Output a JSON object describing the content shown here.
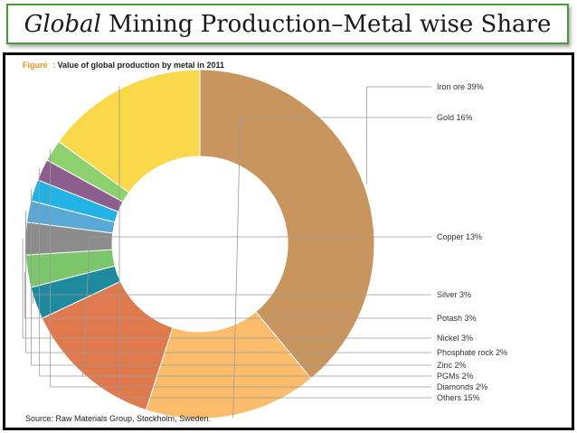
{
  "slide": {
    "title_italic": "Global",
    "title_rest": " Mining Production–Metal wise Share"
  },
  "figure": {
    "prefix": "Figure",
    "separator": ":",
    "caption": "Value of global production by metal in 2011",
    "source": "Source: Raw Materials Group, Stockholm, Sweden."
  },
  "chart_data": {
    "type": "pie",
    "donut": true,
    "title": "Value of global production by metal in 2011",
    "unit": "%",
    "categories": [
      "Iron ore",
      "Gold",
      "Copper",
      "Silver",
      "Potash",
      "Nickel",
      "Phosphate rock",
      "Zinc",
      "PGMs",
      "Diamonds",
      "Others"
    ],
    "values": [
      39,
      16,
      13,
      3,
      3,
      3,
      2,
      2,
      2,
      2,
      15
    ],
    "labels": [
      "Iron ore 39%",
      "Gold 16%",
      "Copper 13%",
      "Silver 3%",
      "Potash 3%",
      "Nickel 3%",
      "Phosphate rock 2%",
      "Zinc 2%",
      "PGMs 2%",
      "Diamonds 2%",
      "Others 15%"
    ],
    "colors": [
      "#c8955e",
      "#fbbd6b",
      "#e07a4e",
      "#1f8a9e",
      "#7bc56a",
      "#8c8c8c",
      "#59a9d6",
      "#23b2e6",
      "#8b5e8e",
      "#8dd16e",
      "#f9d84a",
      "#b4a9d9"
    ],
    "legend": "right"
  }
}
